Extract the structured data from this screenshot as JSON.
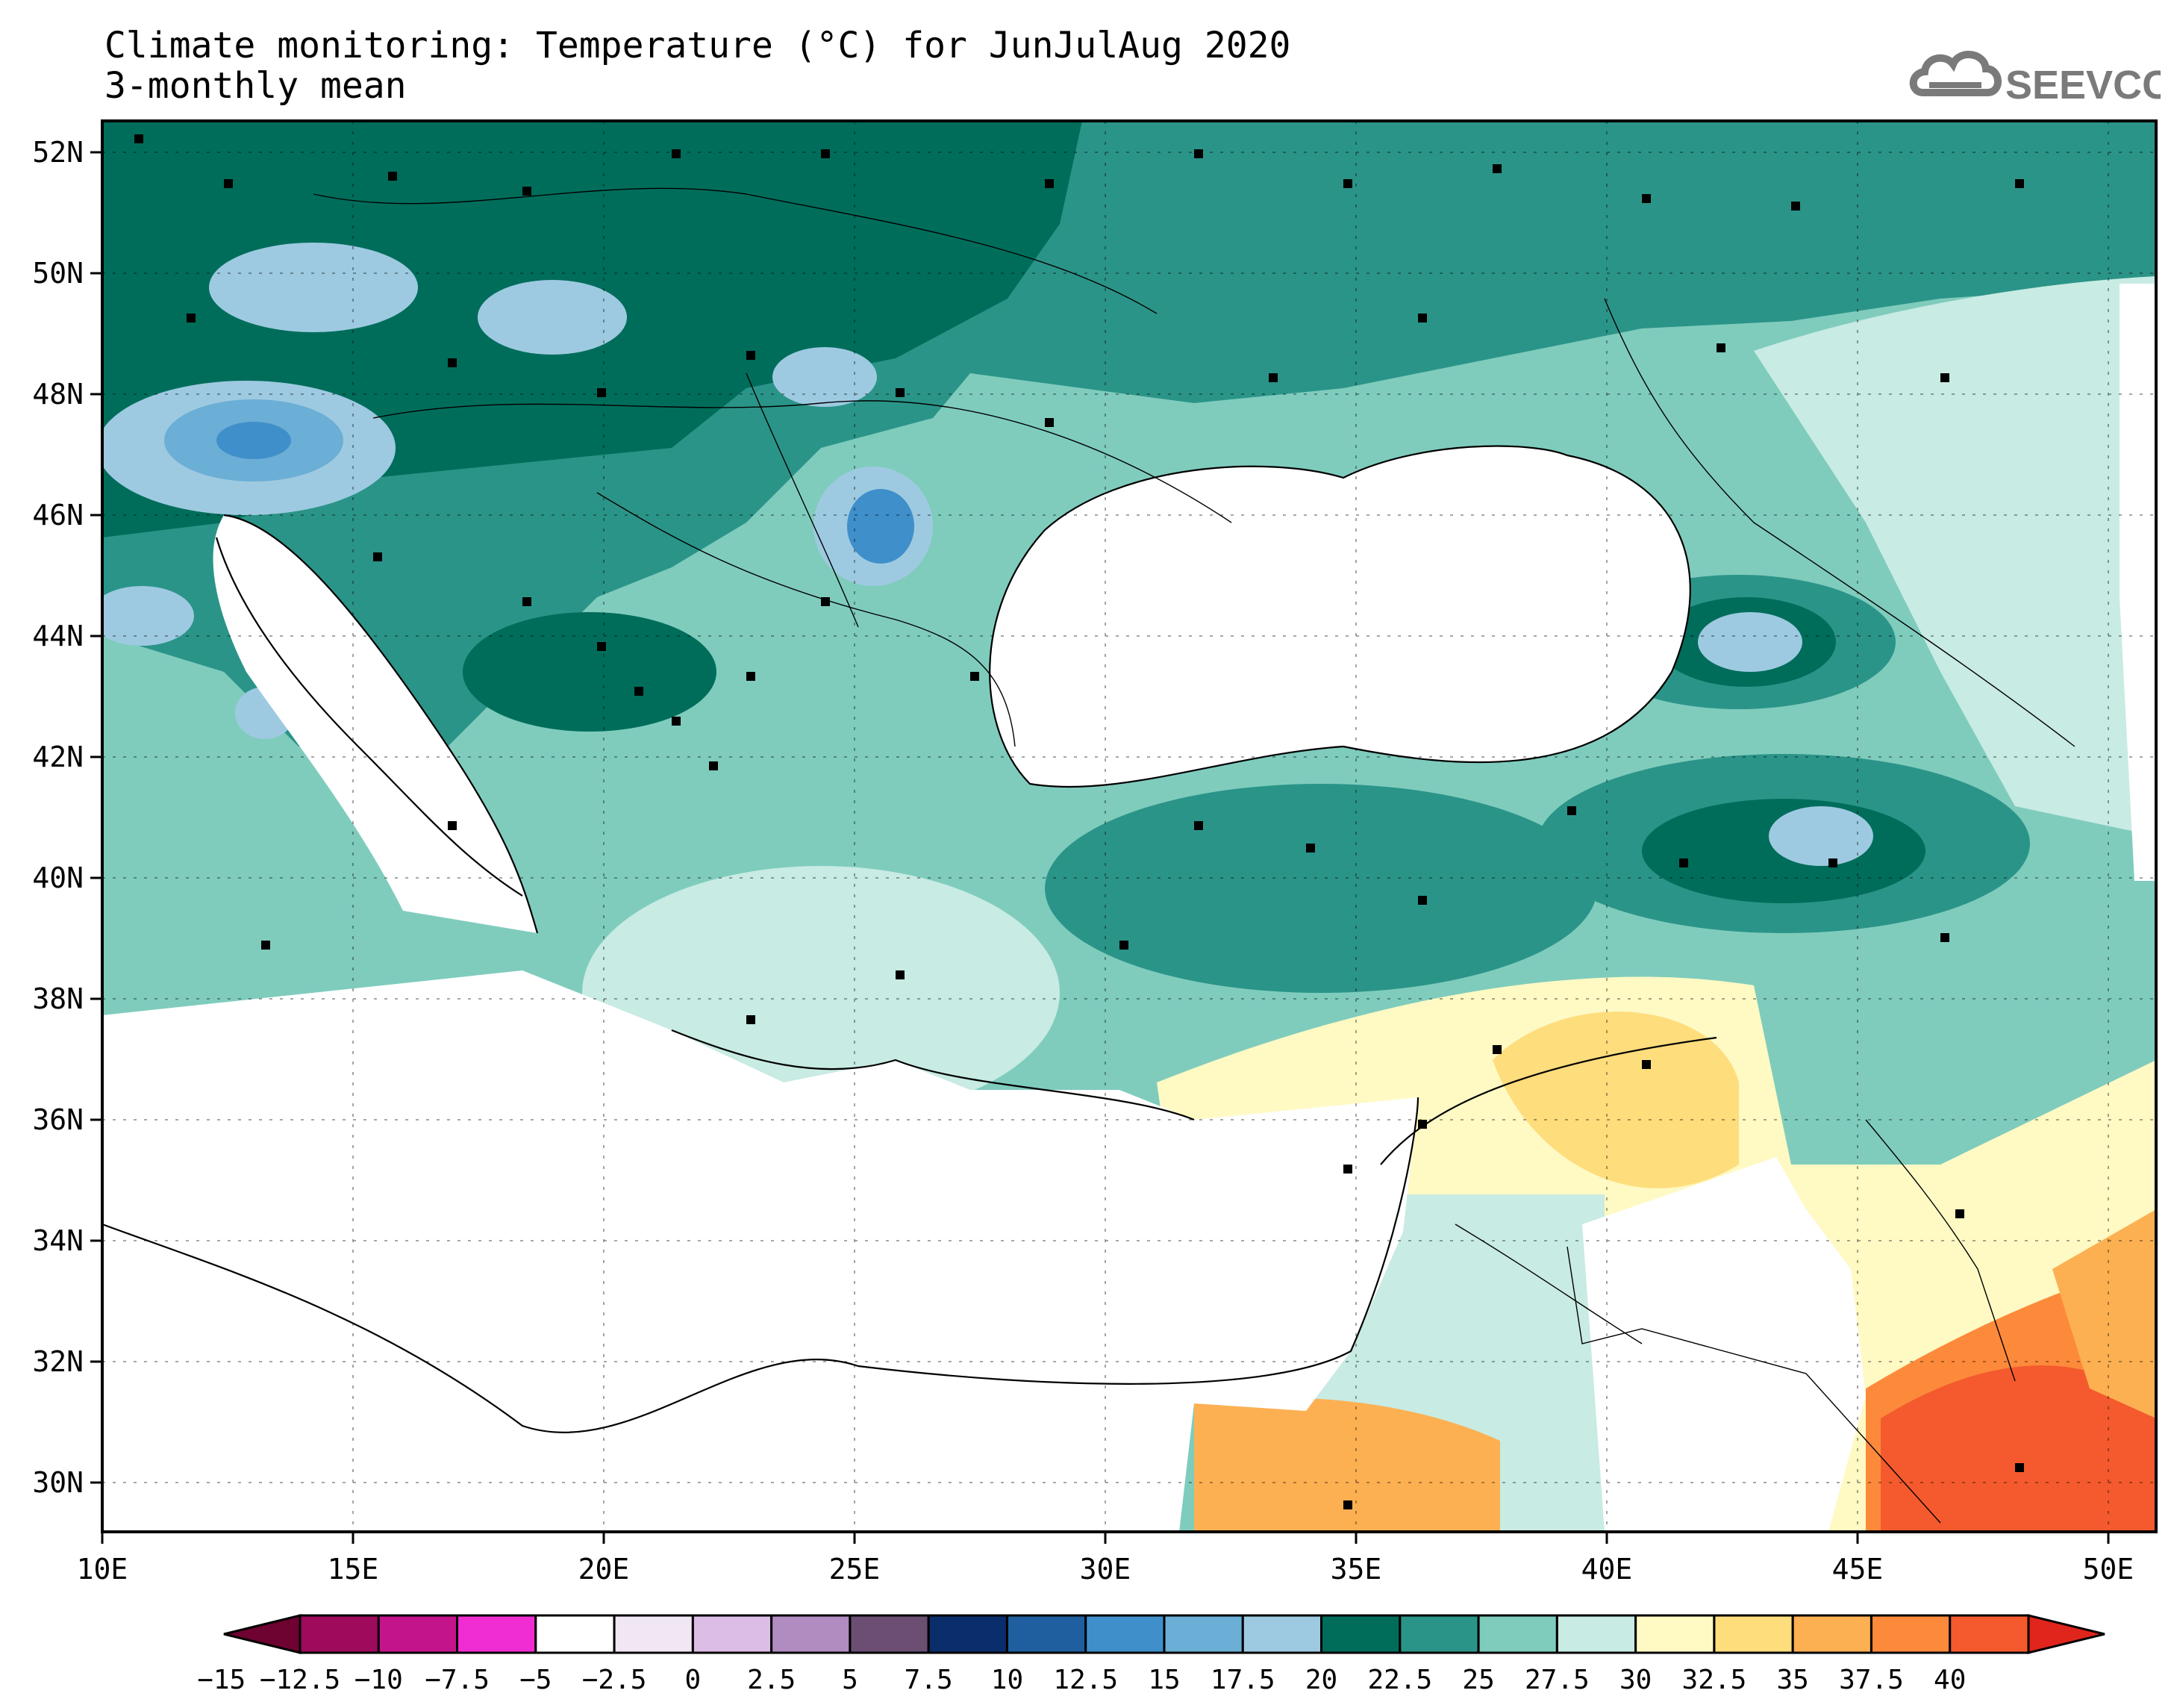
{
  "header": {
    "title_line1": "Climate monitoring: Temperature (°C) for JunJulAug 2020",
    "title_line2": "3-monthly mean"
  },
  "logo": {
    "text": "SEEVCCC",
    "icon": "cloud-icon",
    "color": "#7a7a7a"
  },
  "map": {
    "lon_labels": [
      "10E",
      "15E",
      "20E",
      "25E",
      "30E",
      "35E",
      "40E",
      "45E",
      "50E"
    ],
    "lat_labels": [
      "52N",
      "50N",
      "48N",
      "46N",
      "44N",
      "42N",
      "40N",
      "38N",
      "36N",
      "34N",
      "32N",
      "30N"
    ],
    "no_data_color": "#ffffff"
  },
  "colorbar": {
    "labels": [
      "−15",
      "−12.5",
      "−10",
      "−7.5",
      "−5",
      "−2.5",
      "0",
      "2.5",
      "5",
      "7.5",
      "10",
      "12.5",
      "15",
      "17.5",
      "20",
      "22.5",
      "25",
      "27.5",
      "30",
      "32.5",
      "35",
      "37.5",
      "40"
    ],
    "colors": [
      "#9e0a5c",
      "#c4148c",
      "#f02dd2",
      "#ffffff",
      "#f0e6f4",
      "#dcbde6",
      "#b08cc0",
      "#6b4e72",
      "#0a2e6b",
      "#1f5fa0",
      "#3f8fca",
      "#6baed6",
      "#9ecae1",
      "#006d5b",
      "#2b9488",
      "#7fccbd",
      "#c8ebe3",
      "#fff9c4",
      "#fedd7c",
      "#fdb052",
      "#fd8a3b",
      "#f45a2d"
    ],
    "low_arrow_color": "#6e0230",
    "high_arrow_color": "#e0251c"
  }
}
